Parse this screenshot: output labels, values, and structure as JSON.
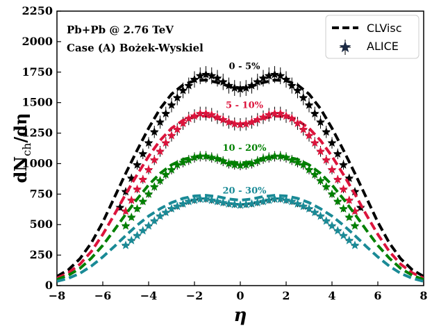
{
  "chart_data": {
    "type": "line",
    "title": "",
    "annotations": [
      "Pb+Pb @ 2.76 TeV",
      "Case (A) Bożek-Wyskiel"
    ],
    "xlabel": "η",
    "ylabel_main": "dN",
    "ylabel_sub": "ch",
    "ylabel_tail": "/dη",
    "xlim": [
      -8,
      8
    ],
    "ylim": [
      0,
      2250
    ],
    "xticks": [
      -8,
      -6,
      -4,
      -2,
      0,
      2,
      4,
      6,
      8
    ],
    "yticks": [
      0,
      250,
      500,
      750,
      1000,
      1250,
      1500,
      1750,
      2000,
      2250
    ],
    "xtick_labels": [
      "−8",
      "−6",
      "−4",
      "−2",
      "0",
      "2",
      "4",
      "6",
      "8"
    ],
    "ytick_labels": [
      "0",
      "250",
      "500",
      "750",
      "1000",
      "1250",
      "1500",
      "1750",
      "2000",
      "2250"
    ],
    "legend": {
      "position": "top-right",
      "entries": [
        {
          "label": "CLVisc",
          "style": "dashed-line"
        },
        {
          "label": "ALICE",
          "style": "star-marker-errorbar"
        }
      ]
    },
    "series": [
      {
        "name": "0 - 5%",
        "color": "#000000",
        "model": {
          "x": [
            -8,
            -7.5,
            -7,
            -6.5,
            -6,
            -5.5,
            -5,
            -4.5,
            -4,
            -3.5,
            -3,
            -2.5,
            -2,
            -1.5,
            -1,
            -0.5,
            0,
            0.5,
            1,
            1.5,
            2,
            2.5,
            3,
            3.5,
            4,
            4.5,
            5,
            5.5,
            6,
            6.5,
            7,
            7.5,
            8
          ],
          "y": [
            75,
            130,
            220,
            350,
            520,
            720,
            920,
            1110,
            1290,
            1450,
            1570,
            1645,
            1680,
            1685,
            1665,
            1635,
            1620,
            1635,
            1665,
            1685,
            1680,
            1645,
            1570,
            1450,
            1290,
            1110,
            920,
            720,
            520,
            350,
            220,
            130,
            75
          ]
        },
        "data": {
          "x": [
            -5.25,
            -5.0,
            -4.75,
            -4.5,
            -4.25,
            -4.0,
            -3.75,
            -3.5,
            -3.25,
            -3.0,
            -2.75,
            -2.5,
            -2.25,
            -2.0,
            -1.75,
            -1.5,
            -1.25,
            -1.0,
            -0.75,
            -0.5,
            -0.25,
            0.0,
            0.25,
            0.5,
            0.75,
            1.0,
            1.25,
            1.5,
            1.75,
            2.0,
            2.25,
            2.5,
            2.75,
            3.0,
            3.25,
            3.5,
            3.75,
            4.0,
            4.25,
            4.5,
            4.75,
            5.0,
            5.25
          ],
          "y": [
            640,
            770,
            880,
            990,
            1080,
            1170,
            1260,
            1340,
            1410,
            1480,
            1540,
            1600,
            1640,
            1690,
            1720,
            1730,
            1720,
            1700,
            1670,
            1640,
            1620,
            1610,
            1620,
            1640,
            1670,
            1700,
            1720,
            1730,
            1720,
            1690,
            1640,
            1600,
            1540,
            1480,
            1410,
            1340,
            1260,
            1170,
            1080,
            990,
            880,
            770,
            640
          ]
        }
      },
      {
        "name": "5 - 10%",
        "color": "#dc143c",
        "model": {
          "x": [
            -8,
            -7.5,
            -7,
            -6.5,
            -6,
            -5.5,
            -5,
            -4.5,
            -4,
            -3.5,
            -3,
            -2.5,
            -2,
            -1.5,
            -1,
            -0.5,
            0,
            0.5,
            1,
            1.5,
            2,
            2.5,
            3,
            3.5,
            4,
            4.5,
            5,
            5.5,
            6,
            6.5,
            7,
            7.5,
            8
          ],
          "y": [
            60,
            105,
            175,
            280,
            420,
            580,
            750,
            910,
            1060,
            1190,
            1290,
            1355,
            1385,
            1390,
            1370,
            1340,
            1325,
            1340,
            1370,
            1390,
            1385,
            1355,
            1290,
            1190,
            1060,
            910,
            750,
            580,
            420,
            280,
            175,
            105,
            60
          ]
        },
        "data": {
          "x": [
            -5.0,
            -4.75,
            -4.5,
            -4.25,
            -4.0,
            -3.75,
            -3.5,
            -3.25,
            -3.0,
            -2.75,
            -2.5,
            -2.25,
            -2.0,
            -1.75,
            -1.5,
            -1.25,
            -1.0,
            -0.75,
            -0.5,
            -0.25,
            0.0,
            0.25,
            0.5,
            0.75,
            1.0,
            1.25,
            1.5,
            1.75,
            2.0,
            2.25,
            2.5,
            2.75,
            3.0,
            3.25,
            3.5,
            3.75,
            4.0,
            4.25,
            4.5,
            4.75,
            5.0
          ],
          "y": [
            610,
            700,
            790,
            870,
            950,
            1030,
            1100,
            1170,
            1230,
            1280,
            1330,
            1370,
            1390,
            1410,
            1410,
            1400,
            1380,
            1360,
            1340,
            1325,
            1320,
            1325,
            1340,
            1360,
            1380,
            1400,
            1410,
            1410,
            1390,
            1370,
            1330,
            1280,
            1230,
            1170,
            1100,
            1030,
            950,
            870,
            790,
            700,
            610
          ]
        }
      },
      {
        "name": "10 - 20%",
        "color": "#008000",
        "model": {
          "x": [
            -8,
            -7.5,
            -7,
            -6.5,
            -6,
            -5.5,
            -5,
            -4.5,
            -4,
            -3.5,
            -3,
            -2.5,
            -2,
            -1.5,
            -1,
            -0.5,
            0,
            0.5,
            1,
            1.5,
            2,
            2.5,
            3,
            3.5,
            4,
            4.5,
            5,
            5.5,
            6,
            6.5,
            7,
            7.5,
            8
          ],
          "y": [
            50,
            85,
            140,
            225,
            330,
            455,
            585,
            710,
            825,
            920,
            990,
            1035,
            1055,
            1055,
            1040,
            1015,
            1005,
            1015,
            1040,
            1055,
            1055,
            1035,
            990,
            920,
            825,
            710,
            585,
            455,
            330,
            225,
            140,
            85,
            50
          ]
        },
        "data": {
          "x": [
            -5.0,
            -4.75,
            -4.5,
            -4.25,
            -4.0,
            -3.75,
            -3.5,
            -3.25,
            -3.0,
            -2.75,
            -2.5,
            -2.25,
            -2.0,
            -1.75,
            -1.5,
            -1.25,
            -1.0,
            -0.75,
            -0.5,
            -0.25,
            0.0,
            0.25,
            0.5,
            0.75,
            1.0,
            1.25,
            1.5,
            1.75,
            2.0,
            2.25,
            2.5,
            2.75,
            3.0,
            3.25,
            3.5,
            3.75,
            4.0,
            4.25,
            4.5,
            4.75,
            5.0
          ],
          "y": [
            490,
            560,
            630,
            690,
            750,
            810,
            860,
            910,
            950,
            990,
            1010,
            1030,
            1050,
            1060,
            1060,
            1050,
            1040,
            1020,
            1000,
            990,
            985,
            990,
            1000,
            1020,
            1040,
            1050,
            1060,
            1060,
            1050,
            1030,
            1010,
            990,
            950,
            910,
            860,
            810,
            750,
            690,
            630,
            560,
            490
          ]
        }
      },
      {
        "name": "20 - 30%",
        "color": "#1a8a96",
        "model": {
          "x": [
            -8,
            -7.5,
            -7,
            -6.5,
            -6,
            -5.5,
            -5,
            -4.5,
            -4,
            -3.5,
            -3,
            -2.5,
            -2,
            -1.5,
            -1,
            -0.5,
            0,
            0.5,
            1,
            1.5,
            2,
            2.5,
            3,
            3.5,
            4,
            4.5,
            5,
            5.5,
            6,
            6.5,
            7,
            7.5,
            8
          ],
          "y": [
            35,
            60,
            100,
            160,
            235,
            320,
            410,
            495,
            570,
            630,
            680,
            715,
            735,
            740,
            730,
            710,
            700,
            710,
            730,
            740,
            735,
            715,
            680,
            630,
            570,
            495,
            410,
            320,
            235,
            160,
            100,
            60,
            35
          ]
        },
        "data": {
          "x": [
            -5.0,
            -4.75,
            -4.5,
            -4.25,
            -4.0,
            -3.75,
            -3.5,
            -3.25,
            -3.0,
            -2.75,
            -2.5,
            -2.25,
            -2.0,
            -1.75,
            -1.5,
            -1.25,
            -1.0,
            -0.75,
            -0.5,
            -0.25,
            0.0,
            0.25,
            0.5,
            0.75,
            1.0,
            1.25,
            1.5,
            1.75,
            2.0,
            2.25,
            2.5,
            2.75,
            3.0,
            3.25,
            3.5,
            3.75,
            4.0,
            4.25,
            4.5,
            4.75,
            5.0
          ],
          "y": [
            330,
            370,
            410,
            450,
            490,
            530,
            570,
            600,
            630,
            650,
            670,
            690,
            700,
            710,
            710,
            700,
            690,
            680,
            670,
            665,
            660,
            665,
            670,
            680,
            690,
            700,
            710,
            710,
            700,
            690,
            670,
            650,
            630,
            600,
            570,
            530,
            490,
            450,
            410,
            370,
            330
          ]
        }
      }
    ]
  }
}
